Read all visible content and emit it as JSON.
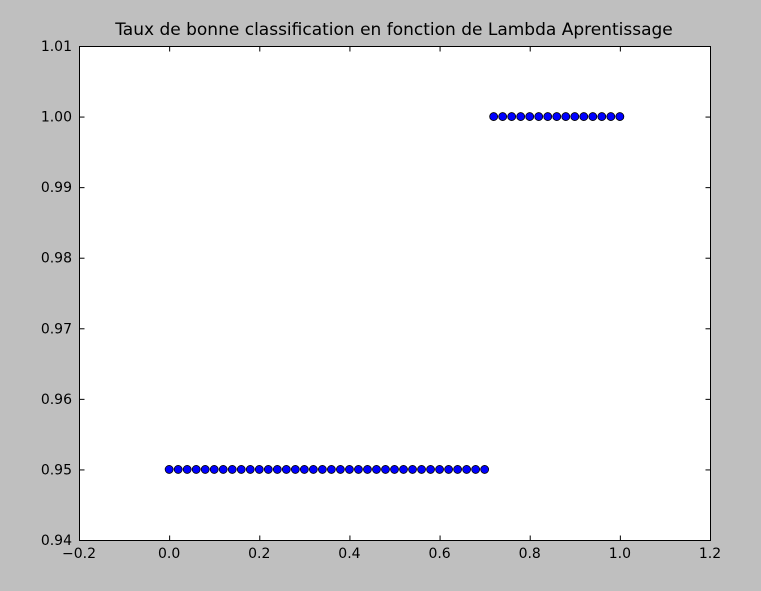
{
  "chart_data": {
    "type": "scatter",
    "title": "Taux de bonne classification en fonction de Lambda Aprentissage",
    "xlabel": "",
    "ylabel": "",
    "xlim": [
      -0.2,
      1.2
    ],
    "ylim": [
      0.94,
      1.01
    ],
    "xticks": [
      -0.2,
      0.0,
      0.2,
      0.4,
      0.6,
      0.8,
      1.0,
      1.2
    ],
    "xtick_labels": [
      "−0.2",
      "0.0",
      "0.2",
      "0.4",
      "0.6",
      "0.8",
      "1.0",
      "1.2"
    ],
    "yticks": [
      0.94,
      0.95,
      0.96,
      0.97,
      0.98,
      0.99,
      1.0,
      1.01
    ],
    "ytick_labels": [
      "0.94",
      "0.95",
      "0.96",
      "0.97",
      "0.98",
      "0.99",
      "1.00",
      "1.01"
    ],
    "grid": false,
    "marker_color": "#0000ff",
    "series": [
      {
        "x": [
          0.0,
          0.02,
          0.04,
          0.06,
          0.08,
          0.1,
          0.12,
          0.14,
          0.16,
          0.18,
          0.2,
          0.22,
          0.24,
          0.26,
          0.28,
          0.3,
          0.32,
          0.34,
          0.36,
          0.38,
          0.4,
          0.42,
          0.44,
          0.46,
          0.48,
          0.5,
          0.52,
          0.54,
          0.56,
          0.58,
          0.6,
          0.62,
          0.64,
          0.66,
          0.68,
          0.7,
          0.72,
          0.74,
          0.76,
          0.78,
          0.8,
          0.82,
          0.84,
          0.86,
          0.88,
          0.9,
          0.92,
          0.94,
          0.96,
          0.98,
          1.0
        ],
        "y": [
          0.95,
          0.95,
          0.95,
          0.95,
          0.95,
          0.95,
          0.95,
          0.95,
          0.95,
          0.95,
          0.95,
          0.95,
          0.95,
          0.95,
          0.95,
          0.95,
          0.95,
          0.95,
          0.95,
          0.95,
          0.95,
          0.95,
          0.95,
          0.95,
          0.95,
          0.95,
          0.95,
          0.95,
          0.95,
          0.95,
          0.95,
          0.95,
          0.95,
          0.95,
          0.95,
          0.95,
          1.0,
          1.0,
          1.0,
          1.0,
          1.0,
          1.0,
          1.0,
          1.0,
          1.0,
          1.0,
          1.0,
          1.0,
          1.0,
          1.0,
          1.0
        ]
      }
    ]
  }
}
